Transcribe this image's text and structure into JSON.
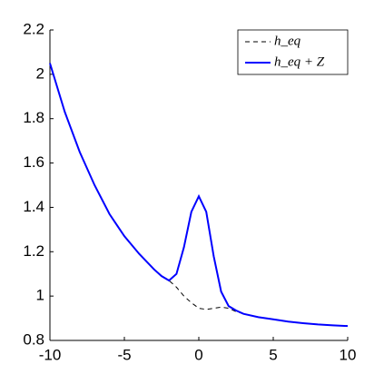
{
  "chart_data": {
    "type": "line",
    "x": [
      -10,
      -9,
      -8,
      -7,
      -6,
      -5,
      -4,
      -3,
      -2.5,
      -2,
      -1.5,
      -1,
      -0.5,
      0,
      0.5,
      1,
      1.5,
      2,
      2.5,
      3,
      4,
      5,
      6,
      7,
      8,
      9,
      10
    ],
    "series": [
      {
        "name": "h_eq",
        "color": "#000000",
        "dash": true,
        "values": [
          2.05,
          1.83,
          1.65,
          1.5,
          1.37,
          1.27,
          1.19,
          1.12,
          1.09,
          1.07,
          1.04,
          1.0,
          0.97,
          0.945,
          0.94,
          0.945,
          0.95,
          0.945,
          0.93,
          0.92,
          0.905,
          0.895,
          0.885,
          0.878,
          0.872,
          0.868,
          0.865
        ]
      },
      {
        "name": "h_eq + Z",
        "color": "#0000ff",
        "dash": false,
        "values": [
          2.05,
          1.83,
          1.65,
          1.5,
          1.37,
          1.27,
          1.19,
          1.12,
          1.09,
          1.07,
          1.1,
          1.22,
          1.38,
          1.45,
          1.38,
          1.18,
          1.02,
          0.955,
          0.935,
          0.92,
          0.905,
          0.895,
          0.885,
          0.878,
          0.872,
          0.868,
          0.865
        ]
      }
    ],
    "xlim": [
      -10,
      10
    ],
    "xticks": [
      -10,
      -5,
      0,
      5,
      10
    ],
    "ylim": [
      0.8,
      2.2
    ],
    "yticks": [
      0.8,
      1,
      1.2,
      1.4,
      1.6,
      1.8,
      2,
      2.2
    ],
    "legend": "top-right"
  }
}
